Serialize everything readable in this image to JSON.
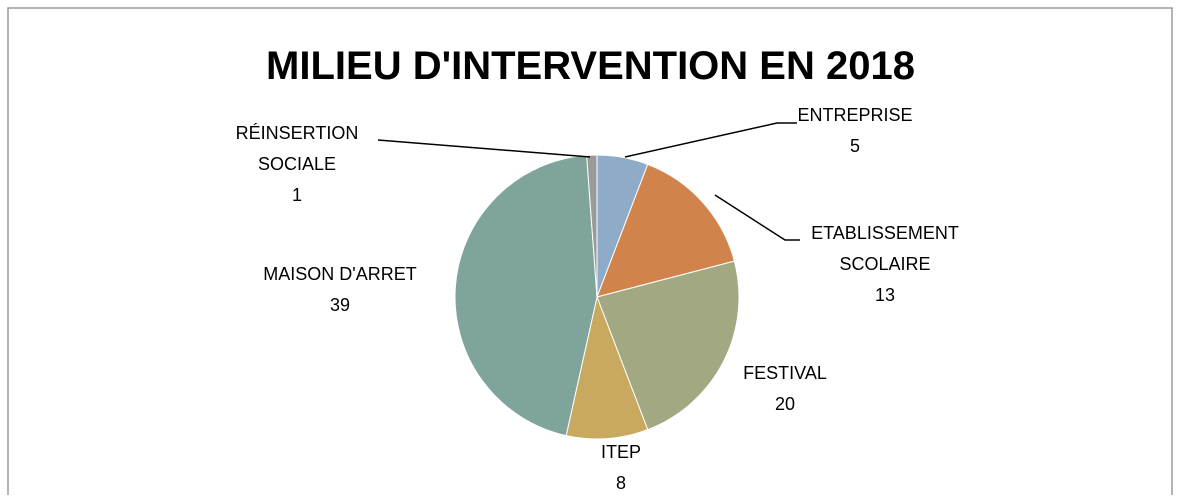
{
  "chart_data": {
    "type": "pie",
    "title": "MILIEU D'INTERVENTION EN 2018",
    "categories": [
      "ENTREPRISE",
      "ETABLISSEMENT SCOLAIRE",
      "FESTIVAL",
      "ITEP",
      "MAISON D'ARRET",
      "RÉINSERTION SOCIALE"
    ],
    "values": [
      5,
      13,
      20,
      8,
      39,
      1
    ],
    "colors": [
      "#8eacc8",
      "#d0844c",
      "#a2a882",
      "#c9a95f",
      "#7fa49b",
      "#9a9a9a"
    ]
  }
}
